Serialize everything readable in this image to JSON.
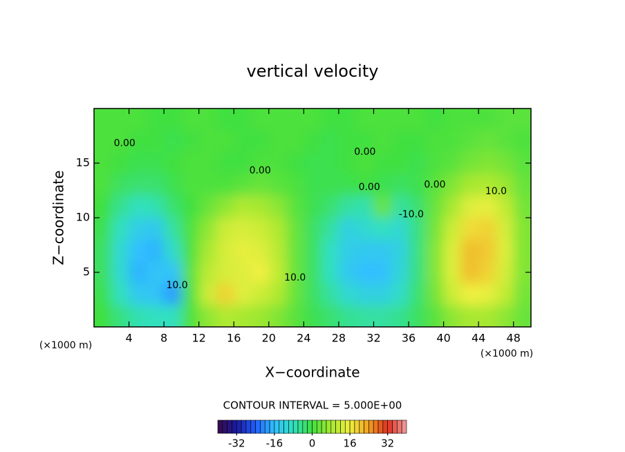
{
  "chart_data": {
    "type": "contour",
    "title": "vertical velocity",
    "xlabel": "X−coordinate",
    "ylabel": "Z−coordinate",
    "x_unit_label": "(×1000 m)",
    "x_unit_label_right": "(×1000 m)",
    "contour_info": "CONTOUR INTERVAL = 5.000E+00",
    "xlim": [
      0,
      50
    ],
    "xticks": [
      4,
      8,
      12,
      16,
      20,
      24,
      28,
      32,
      36,
      40,
      44,
      48
    ],
    "ylim": [
      0,
      20
    ],
    "yticks": [
      5,
      10,
      15
    ],
    "x": [
      1,
      3,
      5,
      7,
      9,
      11,
      13,
      15,
      17,
      19,
      21,
      23,
      25,
      27,
      29,
      31,
      33,
      35,
      37,
      39,
      41,
      43,
      45,
      47,
      49
    ],
    "z": [
      19,
      17,
      15,
      13,
      11,
      9,
      7,
      5,
      3,
      1
    ],
    "values": [
      [
        1,
        1,
        1,
        0,
        0,
        1,
        1,
        0,
        0,
        1,
        1,
        1,
        1,
        0,
        0,
        1,
        1,
        1,
        1,
        0,
        1,
        1,
        1,
        2,
        2
      ],
      [
        1,
        1,
        0,
        0,
        -1,
        0,
        1,
        1,
        0,
        0,
        1,
        1,
        0,
        -1,
        0,
        0,
        1,
        0,
        0,
        1,
        1,
        2,
        3,
        2,
        1
      ],
      [
        1,
        0,
        -1,
        -1,
        0,
        1,
        1,
        0,
        0,
        1,
        1,
        0,
        -1,
        -1,
        0,
        1,
        0,
        0,
        -1,
        1,
        2,
        4,
        5,
        4,
        2
      ],
      [
        1,
        -2,
        -3,
        -3,
        -1,
        1,
        1,
        1,
        2,
        3,
        2,
        1,
        -1,
        -1,
        -1,
        0,
        -1,
        -2,
        -1,
        2,
        5,
        8,
        9,
        7,
        3
      ],
      [
        0,
        -5,
        -8,
        -7,
        -3,
        0,
        3,
        6,
        9,
        8,
        6,
        2,
        -1,
        -3,
        -6,
        -7,
        3,
        -6,
        -3,
        3,
        8,
        14,
        15,
        11,
        4
      ],
      [
        -1,
        -8,
        -13,
        -14,
        -6,
        1,
        6,
        12,
        13,
        12,
        9,
        3,
        -2,
        -6,
        -12,
        -10,
        -8,
        -10,
        -4,
        4,
        12,
        18,
        19,
        13,
        5
      ],
      [
        -2,
        -10,
        -16,
        -17,
        -9,
        1,
        8,
        13,
        15,
        14,
        10,
        3,
        -2,
        -8,
        -13,
        -14,
        -14,
        -12,
        -4,
        5,
        14,
        21,
        20,
        14,
        5
      ],
      [
        -2,
        -10,
        -17,
        -15,
        -15,
        2,
        10,
        13,
        14,
        16,
        11,
        3,
        -2,
        -8,
        -14,
        -16,
        -16,
        -11,
        -4,
        5,
        14,
        21,
        19,
        13,
        5
      ],
      [
        -1,
        -8,
        -14,
        -15,
        -19,
        1,
        12,
        19,
        14,
        12,
        9,
        3,
        -2,
        -6,
        -10,
        -12,
        -12,
        -9,
        -3,
        4,
        12,
        16,
        15,
        11,
        4
      ],
      [
        0,
        -4,
        -7,
        -8,
        -8,
        1,
        6,
        9,
        8,
        7,
        5,
        2,
        -1,
        -3,
        -5,
        -6,
        -6,
        -5,
        -2,
        2,
        6,
        8,
        8,
        6,
        3
      ]
    ],
    "clim": [
      -40,
      40
    ],
    "cticks": [
      -32,
      -16,
      0,
      16,
      32
    ],
    "colormap": [
      {
        "value": -40,
        "color": "#3a0a4a"
      },
      {
        "value": -32,
        "color": "#1a1aa0"
      },
      {
        "value": -24,
        "color": "#2060ff"
      },
      {
        "value": -16,
        "color": "#30c0ff"
      },
      {
        "value": -8,
        "color": "#30e0c0"
      },
      {
        "value": 0,
        "color": "#40e040"
      },
      {
        "value": 8,
        "color": "#a8e830"
      },
      {
        "value": 16,
        "color": "#f0f040"
      },
      {
        "value": 24,
        "color": "#f0a020"
      },
      {
        "value": 32,
        "color": "#e03020"
      },
      {
        "value": 40,
        "color": "#f0a0a0"
      }
    ],
    "contour_labels": [
      {
        "text": "0.00",
        "x": 3.5,
        "z": 16.8
      },
      {
        "text": "0.00",
        "x": 19,
        "z": 14.3
      },
      {
        "text": "0.00",
        "x": 31,
        "z": 16
      },
      {
        "text": "0.00",
        "x": 31.5,
        "z": 12.8
      },
      {
        "text": "0.00",
        "x": 39,
        "z": 13
      },
      {
        "text": "10.0",
        "x": 46,
        "z": 12.4
      },
      {
        "text": "10.0",
        "x": 23,
        "z": 4.5
      },
      {
        "text": "-10.0",
        "x": 36.3,
        "z": 10.3
      },
      {
        "text": "10.0",
        "x": 9.5,
        "z": 3.8
      }
    ]
  }
}
